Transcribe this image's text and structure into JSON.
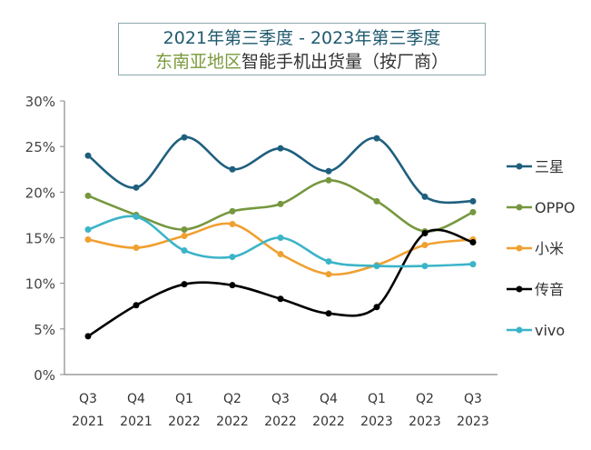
{
  "chart_data": {
    "type": "line",
    "title_line1": "2021年第三季度 - 2023年第三季度",
    "title_line2_region": "东南亚地区",
    "title_line2_rest": "智能手机出货量（按厂商）",
    "categories": [
      [
        "Q3",
        "2021"
      ],
      [
        "Q4",
        "2021"
      ],
      [
        "Q1",
        "2022"
      ],
      [
        "Q2",
        "2022"
      ],
      [
        "Q3",
        "2022"
      ],
      [
        "Q4",
        "2022"
      ],
      [
        "Q1",
        "2023"
      ],
      [
        "Q2",
        "2023"
      ],
      [
        "Q3",
        "2023"
      ]
    ],
    "ylim": [
      0,
      30
    ],
    "yticks": [
      "0%",
      "5%",
      "10%",
      "15%",
      "20%",
      "25%",
      "30%"
    ],
    "grid": false,
    "smooth": true,
    "legend_position": "right",
    "series": [
      {
        "name": "三星",
        "color": "#1f5f7e",
        "values": [
          24.0,
          20.5,
          26.0,
          22.5,
          24.8,
          22.3,
          25.9,
          19.5,
          19.0
        ]
      },
      {
        "name": "OPPO",
        "color": "#76973f",
        "values": [
          19.6,
          17.5,
          15.9,
          17.9,
          18.7,
          21.3,
          19.0,
          15.7,
          17.8
        ]
      },
      {
        "name": "小米",
        "color": "#f0a030",
        "values": [
          14.8,
          13.9,
          15.2,
          16.5,
          13.2,
          11.0,
          12.0,
          14.2,
          14.8
        ]
      },
      {
        "name": "传音",
        "color": "#000000",
        "values": [
          4.2,
          7.6,
          9.9,
          9.8,
          8.3,
          6.7,
          7.4,
          15.5,
          14.5
        ]
      },
      {
        "name": "vivo",
        "color": "#3bb4c8",
        "values": [
          15.9,
          17.3,
          13.6,
          12.9,
          15.0,
          12.4,
          11.9,
          11.9,
          12.1
        ]
      }
    ]
  }
}
